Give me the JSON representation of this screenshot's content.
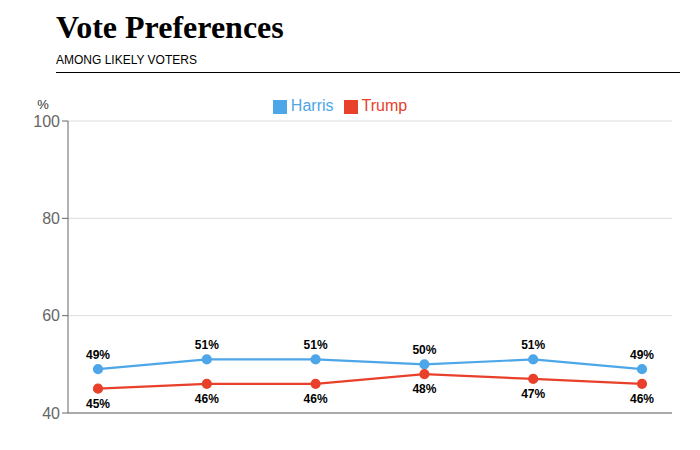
{
  "chart_data": {
    "type": "line",
    "title": "Vote Preferences",
    "subtitle": "AMONG LIKELY VOTERS",
    "y_label": "%",
    "categories": [
      null,
      null,
      null,
      null,
      null,
      null
    ],
    "series": [
      {
        "name": "Harris",
        "color": "#4da6e8",
        "marker": "o",
        "values": [
          49,
          51,
          51,
          50,
          51,
          49
        ],
        "value_labels": [
          "49%",
          "51%",
          "51%",
          "50%",
          "51%",
          "49%"
        ]
      },
      {
        "name": "Trump",
        "color": "#e8402a",
        "marker": "o",
        "values": [
          45,
          46,
          46,
          48,
          47,
          46
        ],
        "value_labels": [
          "45%",
          "46%",
          "46%",
          "48%",
          "47%",
          "46%"
        ]
      }
    ],
    "ylim": [
      40,
      100
    ],
    "yticks": [
      40,
      60,
      80,
      100
    ],
    "grid": true,
    "legend": "top",
    "data_labels": true,
    "tick_labels": "y"
  }
}
